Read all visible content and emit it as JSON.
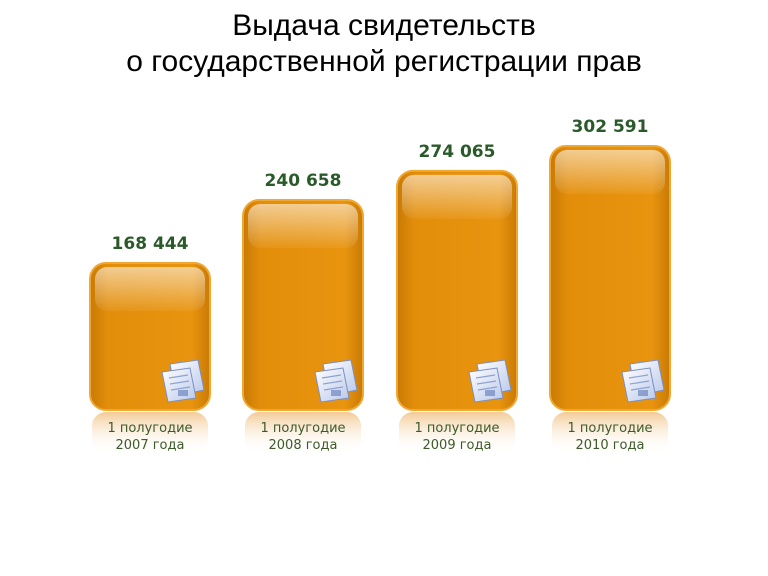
{
  "title": {
    "line1": "Выдача свидетельств",
    "line2": "о государственной регистрации прав"
  },
  "colors": {
    "bar": "#e38e0a",
    "bar_dark": "#c97a05",
    "bar_border": "#f0a832",
    "value_text": "#2a5a2a",
    "category_text": "#3d5a2a"
  },
  "chart_data": {
    "type": "bar",
    "title": "Выдача свидетельств о государственной регистрации прав",
    "categories": [
      [
        "1 полугодие",
        "2007 года"
      ],
      [
        "1 полугодие",
        "2008 года"
      ],
      [
        "1 полугодие",
        "2009 года"
      ],
      [
        "1 полугодие",
        "2010 года"
      ]
    ],
    "values": [
      168444,
      240658,
      274065,
      302591
    ],
    "value_labels": [
      "168 444",
      "240 658",
      "274 065",
      "302 591"
    ],
    "xlabel": "",
    "ylabel": "",
    "ylim": [
      0,
      302591
    ],
    "grid": false,
    "legend": "none",
    "bar_icon": "document-icon"
  }
}
